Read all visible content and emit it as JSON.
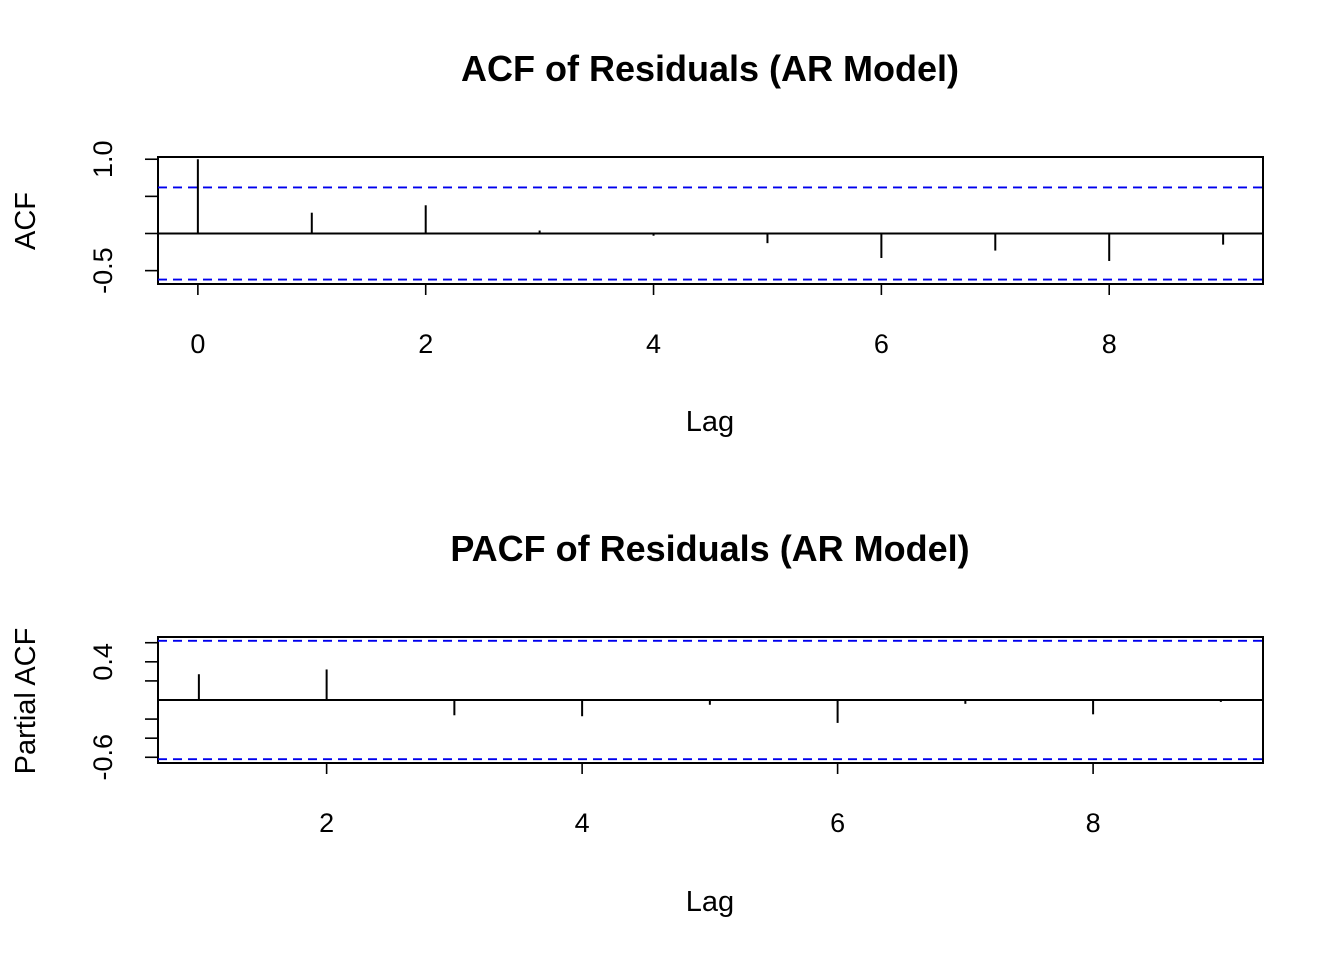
{
  "chart_data": [
    {
      "type": "bar",
      "subtype": "acf",
      "title": "ACF of Residuals (AR Model)",
      "xlabel": "Lag",
      "ylabel": "ACF",
      "x": [
        0,
        1,
        2,
        3,
        4,
        5,
        6,
        7,
        8,
        9
      ],
      "values": [
        1.0,
        0.28,
        0.38,
        0.04,
        -0.03,
        -0.13,
        -0.33,
        -0.23,
        -0.37,
        -0.15
      ],
      "confidence_interval": [
        -0.62,
        0.62
      ],
      "xlim": [
        -0.35,
        9.35
      ],
      "ylim": [
        -0.68,
        1.03
      ],
      "xticks": [
        0,
        2,
        4,
        6,
        8
      ],
      "xtick_labels": [
        "0",
        "2",
        "4",
        "6",
        "8"
      ],
      "yticks": [
        -0.5,
        0,
        0.5,
        1.0
      ],
      "ytick_labels": [
        "-0.5",
        "",
        "",
        "1.0"
      ],
      "ci_color": "#0000ee",
      "grid": false,
      "legend": "none"
    },
    {
      "type": "bar",
      "subtype": "pacf",
      "title": "PACF of Residuals (AR Model)",
      "xlabel": "Lag",
      "ylabel": "Partial ACF",
      "x": [
        1,
        2,
        3,
        4,
        5,
        6,
        7,
        8,
        9
      ],
      "values": [
        0.27,
        0.32,
        -0.16,
        -0.17,
        -0.05,
        -0.24,
        -0.04,
        -0.15,
        -0.02
      ],
      "confidence_interval": [
        -0.62,
        0.62
      ],
      "xlim": [
        0.68,
        9.33
      ],
      "ylim": [
        -0.66,
        0.66
      ],
      "xticks": [
        2,
        4,
        6,
        8
      ],
      "xtick_labels": [
        "2",
        "4",
        "6",
        "8"
      ],
      "yticks": [
        -0.6,
        -0.4,
        -0.2,
        0.2,
        0.4,
        0.6
      ],
      "ytick_labels": [
        "-0.6",
        "",
        "",
        "",
        "0.4",
        ""
      ],
      "ci_color": "#0000ee",
      "grid": false,
      "legend": "none"
    }
  ]
}
